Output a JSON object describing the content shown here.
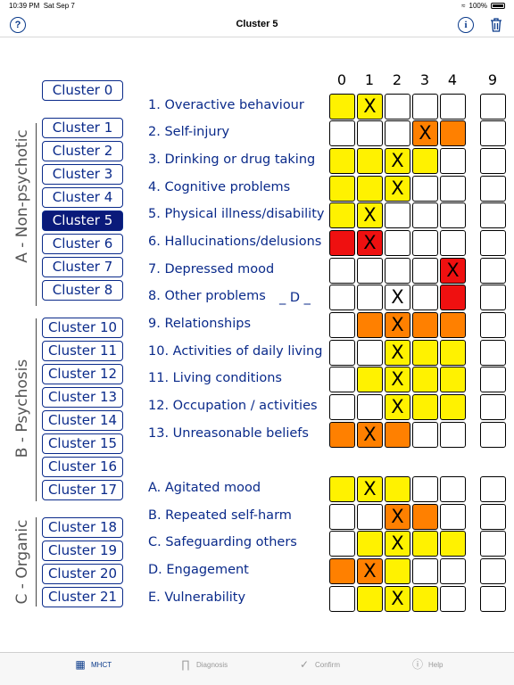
{
  "status_bar": {
    "time": "10:39 PM",
    "date": "Sat Sep 7",
    "battery": "100%"
  },
  "nav": {
    "title": "Cluster 5",
    "help_icon": "question-icon",
    "info_icon": "info-icon",
    "trash_icon": "trash-icon"
  },
  "groups": [
    "A - Non-psychotic",
    "B - Psychosis",
    "C - Organic"
  ],
  "clusters": [
    "Cluster 0",
    "Cluster 1",
    "Cluster 2",
    "Cluster 3",
    "Cluster 4",
    "Cluster 5",
    "Cluster 6",
    "Cluster 7",
    "Cluster 8",
    "Cluster 10",
    "Cluster 11",
    "Cluster 12",
    "Cluster 13",
    "Cluster 14",
    "Cluster 15",
    "Cluster 16",
    "Cluster 17",
    "Cluster 18",
    "Cluster 19",
    "Cluster 20",
    "Cluster 21"
  ],
  "selected_cluster": "Cluster 5",
  "columns": [
    "0",
    "1",
    "2",
    "3",
    "4",
    "9"
  ],
  "items": [
    {
      "label": "1. Overactive behaviour",
      "colors": [
        "y",
        "y",
        "",
        "",
        ""
      ],
      "mark": 1
    },
    {
      "label": "2. Self-injury",
      "colors": [
        "",
        "",
        "",
        "o",
        "o"
      ],
      "mark": 3
    },
    {
      "label": "3. Drinking or drug taking",
      "colors": [
        "y",
        "y",
        "y",
        "y",
        ""
      ],
      "mark": 2
    },
    {
      "label": "4. Cognitive problems",
      "colors": [
        "y",
        "y",
        "y",
        "",
        ""
      ],
      "mark": 2
    },
    {
      "label": "5. Physical illness/disability",
      "colors": [
        "y",
        "y",
        "",
        "",
        ""
      ],
      "mark": 1
    },
    {
      "label": "6. Hallucinations/delusions",
      "colors": [
        "r",
        "r",
        "",
        "",
        ""
      ],
      "mark": 1
    },
    {
      "label": "7. Depressed mood",
      "colors": [
        "",
        "",
        "",
        "",
        "r"
      ],
      "mark": 4
    },
    {
      "label": "8. Other problems",
      "colors": [
        "",
        "",
        "",
        "",
        "r"
      ],
      "mark": 2
    },
    {
      "label": "9. Relationships",
      "colors": [
        "",
        "o",
        "o",
        "o",
        "o"
      ],
      "mark": 2
    },
    {
      "label": "10. Activities of daily living",
      "colors": [
        "",
        "",
        "y",
        "y",
        "y"
      ],
      "mark": 2
    },
    {
      "label": "11. Living conditions",
      "colors": [
        "",
        "y",
        "y",
        "y",
        "y"
      ],
      "mark": 2
    },
    {
      "label": "12. Occupation / activities",
      "colors": [
        "",
        "",
        "y",
        "y",
        "y"
      ],
      "mark": 2
    },
    {
      "label": "13. Unreasonable beliefs",
      "colors": [
        "o",
        "o",
        "o",
        "",
        ""
      ],
      "mark": 1
    },
    {
      "label": "A. Agitated mood",
      "colors": [
        "y",
        "y",
        "y",
        "",
        ""
      ],
      "mark": 1
    },
    {
      "label": "B. Repeated self-harm",
      "colors": [
        "",
        "",
        "o",
        "o",
        ""
      ],
      "mark": 2
    },
    {
      "label": "C. Safeguarding others",
      "colors": [
        "",
        "y",
        "y",
        "y",
        "y"
      ],
      "mark": 2
    },
    {
      "label": "D. Engagement",
      "colors": [
        "o",
        "o",
        "y",
        "",
        ""
      ],
      "mark": 1
    },
    {
      "label": "E. Vulnerability",
      "colors": [
        "",
        "y",
        "y",
        "y",
        ""
      ],
      "mark": 2
    }
  ],
  "other_problems_code": "_ D _",
  "mark_symbol": "X",
  "tabs": [
    {
      "label": "MHCT",
      "icon": "grid-icon"
    },
    {
      "label": "Diagnosis",
      "icon": "stethoscope-icon"
    },
    {
      "label": "Confirm",
      "icon": "check-icon"
    },
    {
      "label": "Help",
      "icon": "info-icon"
    }
  ],
  "colors": {
    "yellow": "#fff200",
    "orange": "#ff8000",
    "red": "#ef1010",
    "navy": "#0a1a7a"
  }
}
